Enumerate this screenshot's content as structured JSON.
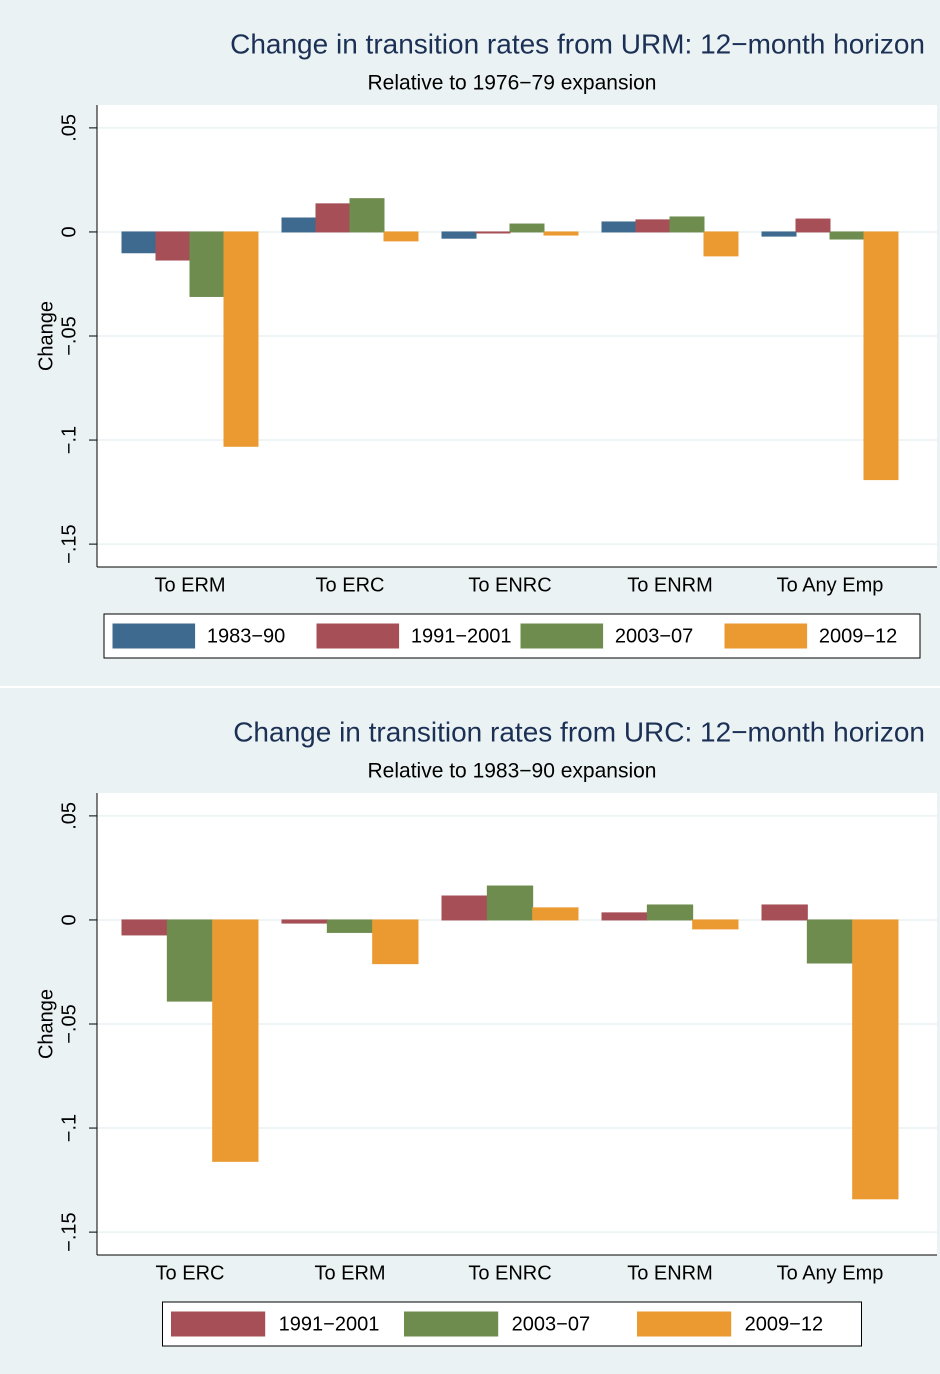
{
  "chart_data": [
    {
      "type": "bar",
      "title": "Change in transition rates from URM: 12−month horizon",
      "subtitle": "Relative to 1976−79 expansion",
      "y_label": "Change",
      "categories": [
        "To ERM",
        "To ERC",
        "To ENRC",
        "To ENRM",
        "To Any Emp"
      ],
      "series": [
        {
          "name": "1983−90",
          "color": "#3f6a8f",
          "values": [
            -0.01,
            0.0067,
            -0.003,
            0.0048,
            -0.002
          ]
        },
        {
          "name": "1991−2001",
          "color": "#a64f56",
          "values": [
            -0.0135,
            0.0135,
            -0.0005,
            0.0058,
            0.0062
          ]
        },
        {
          "name": "2003−07",
          "color": "#6f8c4f",
          "values": [
            -0.031,
            0.016,
            0.0038,
            0.0072,
            -0.0034
          ]
        },
        {
          "name": "2009−12",
          "color": "#eb9a32",
          "values": [
            -0.103,
            -0.0043,
            -0.0015,
            -0.0115,
            -0.119
          ]
        }
      ],
      "ylim": [
        -0.161,
        0.061
      ],
      "yticks": [
        {
          "value": -0.15,
          "label": "−.15"
        },
        {
          "value": -0.1,
          "label": "−.1"
        },
        {
          "value": -0.05,
          "label": "−.05"
        },
        0,
        {
          "value": 0.05,
          "label": ".05"
        }
      ],
      "grid": true
    },
    {
      "type": "bar",
      "title": "Change in transition rates from URC: 12−month horizon",
      "subtitle": "Relative to 1983−90 expansion",
      "y_label": "Change",
      "categories": [
        "To ERC",
        "To ERM",
        "To ENRC",
        "To ENRM",
        "To Any Emp"
      ],
      "series": [
        {
          "name": "1991−2001",
          "color": "#a64f56",
          "values": [
            -0.0072,
            -0.0015,
            0.0115,
            0.0034,
            0.0072
          ]
        },
        {
          "name": "2003−07",
          "color": "#6f8c4f",
          "values": [
            -0.039,
            -0.006,
            0.0163,
            0.0072,
            -0.0207
          ]
        },
        {
          "name": "2009−12",
          "color": "#eb9a32",
          "values": [
            -0.116,
            -0.021,
            0.0058,
            -0.0043,
            -0.134
          ]
        }
      ],
      "ylim": [
        -0.161,
        0.061
      ],
      "yticks": [
        {
          "value": -0.15,
          "label": "−.15"
        },
        {
          "value": -0.1,
          "label": "−.1"
        },
        {
          "value": -0.05,
          "label": "−.05"
        },
        0,
        {
          "value": 0.05,
          "label": ".05"
        }
      ],
      "grid": true
    }
  ]
}
